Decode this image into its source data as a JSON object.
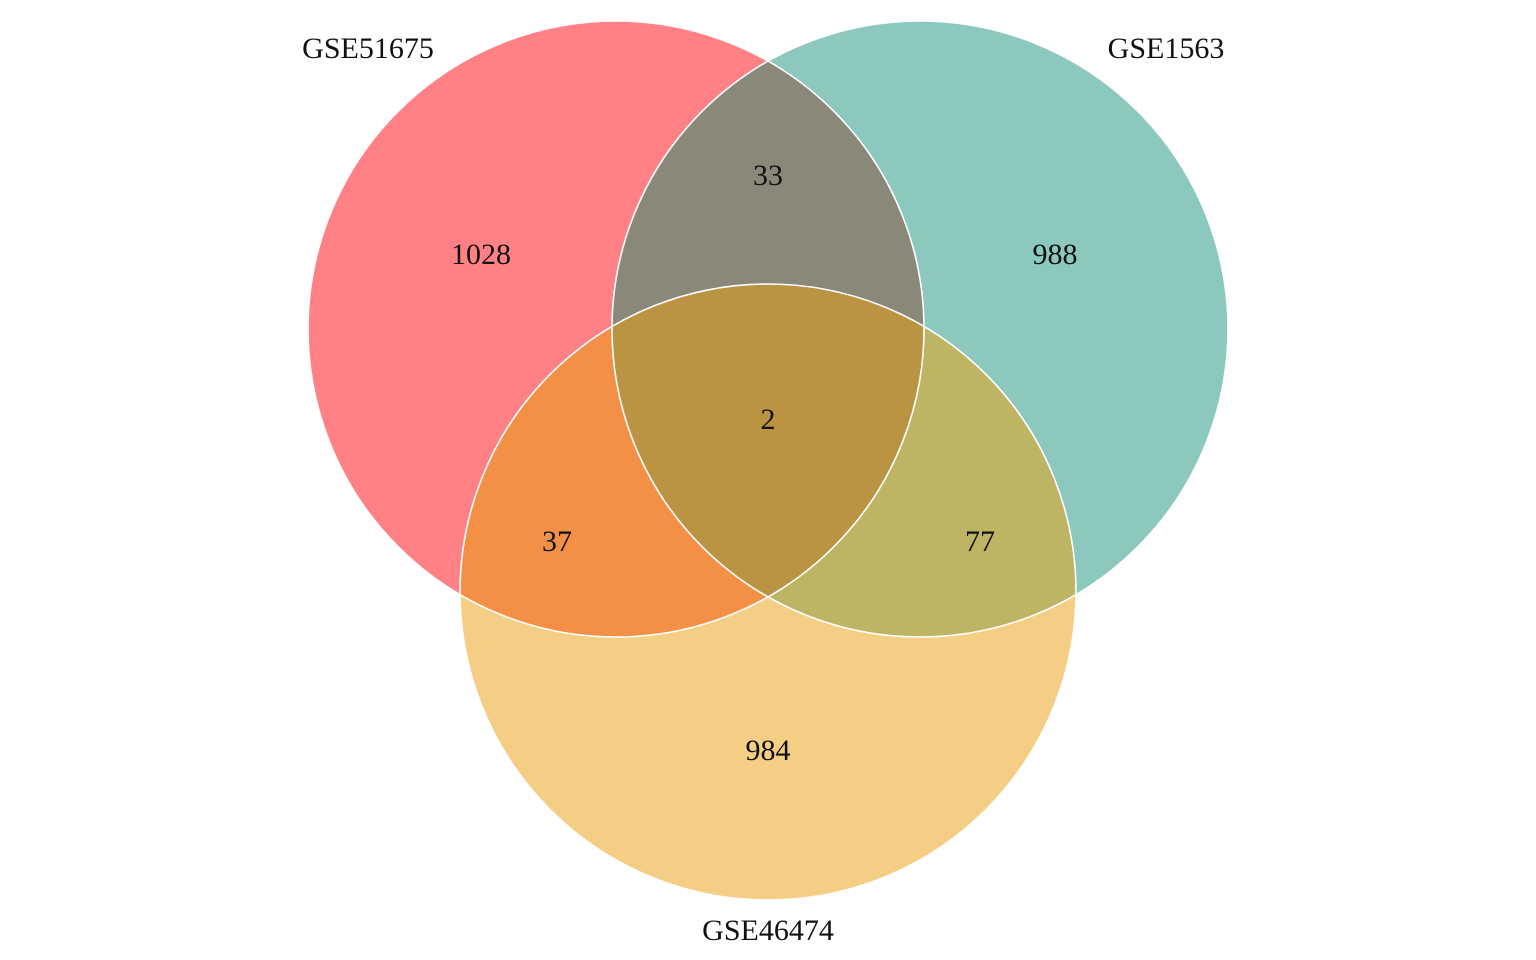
{
  "diagram": {
    "type": "venn-3",
    "sets": [
      {
        "name": "GSE51675",
        "color": "#FF8185"
      },
      {
        "name": "GSE1563",
        "color": "#8CC8BE"
      },
      {
        "name": "GSE46474",
        "color": "#F5CE85"
      }
    ],
    "regions": {
      "only_a": "1028",
      "only_b": "988",
      "only_c": "984",
      "a_b": "33",
      "a_c": "37",
      "b_c": "77",
      "a_b_c": "2"
    },
    "region_colors": {
      "a_b": "#898879",
      "a_c": "#F39046",
      "b_c": "#BDB563",
      "a_b_c": "#BA9442"
    },
    "outline_color": "#FFFFFF"
  }
}
